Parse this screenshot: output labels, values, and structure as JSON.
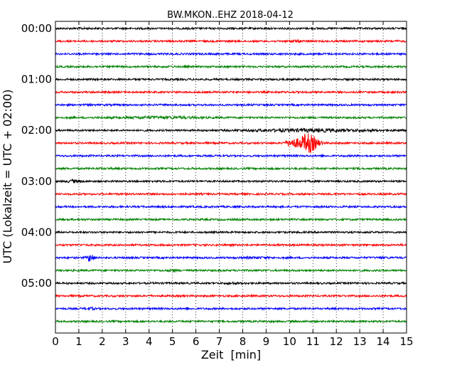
{
  "chart_data": {
    "type": "line",
    "title": "BW.MKON..EHZ 2018-04-12",
    "xlabel": "Zeit  [min]",
    "ylabel": "UTC (Lokalzeit = UTC + 02:00)",
    "xlim": [
      0,
      15
    ],
    "x_ticks": [
      0,
      1,
      2,
      3,
      4,
      5,
      6,
      7,
      8,
      9,
      10,
      11,
      12,
      13,
      14,
      15
    ],
    "y_tick_labels": [
      "00:00",
      "01:00",
      "02:00",
      "03:00",
      "04:00",
      "05:00"
    ],
    "trace_minutes_start": 0,
    "trace_interval_minutes": 15,
    "grid": "vertical dotted",
    "colors": [
      "#000000",
      "#ff0000",
      "#0000ff",
      "#008000"
    ],
    "series": [
      {
        "start": "00:00",
        "color": "#000000",
        "events": [
          {
            "t": 1.2,
            "amp": 1.3,
            "dur": 0.5
          }
        ]
      },
      {
        "start": "00:15",
        "color": "#ff0000",
        "events": [
          {
            "t": 10.3,
            "amp": 2.0,
            "dur": 0.5
          },
          {
            "t": 14.5,
            "amp": 1.2,
            "dur": 0.4
          }
        ]
      },
      {
        "start": "00:30",
        "color": "#0000ff",
        "events": []
      },
      {
        "start": "00:45",
        "color": "#008000",
        "events": [
          {
            "t": 5.0,
            "amp": 1.2,
            "dur": 0.6
          }
        ]
      },
      {
        "start": "01:00",
        "color": "#000000",
        "events": []
      },
      {
        "start": "01:15",
        "color": "#ff0000",
        "events": []
      },
      {
        "start": "01:30",
        "color": "#0000ff",
        "events": [
          {
            "t": 1.5,
            "amp": 1.2,
            "dur": 0.3
          }
        ]
      },
      {
        "start": "01:45",
        "color": "#008000",
        "events": [
          {
            "t": 4.5,
            "amp": 2.0,
            "dur": 3.5
          }
        ]
      },
      {
        "start": "02:00",
        "color": "#000000",
        "events": [
          {
            "t": 11.0,
            "amp": 2.5,
            "dur": 5.0
          }
        ]
      },
      {
        "start": "02:15",
        "color": "#ff0000",
        "events": [
          {
            "t": 10.1,
            "amp": 6.0,
            "dur": 0.5
          },
          {
            "t": 10.8,
            "amp": 14.0,
            "dur": 0.8
          }
        ]
      },
      {
        "start": "02:30",
        "color": "#0000ff",
        "events": []
      },
      {
        "start": "02:45",
        "color": "#008000",
        "events": [
          {
            "t": 2.0,
            "amp": 1.2,
            "dur": 0.8
          }
        ]
      },
      {
        "start": "03:00",
        "color": "#000000",
        "events": [
          {
            "t": 0.8,
            "amp": 2.5,
            "dur": 0.6
          }
        ]
      },
      {
        "start": "03:15",
        "color": "#ff0000",
        "events": []
      },
      {
        "start": "03:30",
        "color": "#0000ff",
        "events": []
      },
      {
        "start": "03:45",
        "color": "#008000",
        "events": []
      },
      {
        "start": "04:00",
        "color": "#000000",
        "events": []
      },
      {
        "start": "04:15",
        "color": "#ff0000",
        "events": []
      },
      {
        "start": "04:30",
        "color": "#0000ff",
        "events": [
          {
            "t": 1.5,
            "amp": 6.0,
            "dur": 0.3
          },
          {
            "t": 8.5,
            "amp": 1.5,
            "dur": 1.5
          },
          {
            "t": 14.0,
            "amp": 1.5,
            "dur": 0.5
          }
        ]
      },
      {
        "start": "04:45",
        "color": "#008000",
        "events": [
          {
            "t": 5.0,
            "amp": 2.5,
            "dur": 0.3
          }
        ]
      },
      {
        "start": "05:00",
        "color": "#000000",
        "events": [
          {
            "t": 7.5,
            "amp": 2.0,
            "dur": 0.4
          },
          {
            "t": 8.1,
            "amp": 1.5,
            "dur": 0.3
          }
        ]
      },
      {
        "start": "05:15",
        "color": "#ff0000",
        "events": []
      },
      {
        "start": "05:30",
        "color": "#0000ff",
        "events": [
          {
            "t": 1.5,
            "amp": 2.0,
            "dur": 0.4
          }
        ]
      },
      {
        "start": "05:45",
        "color": "#008000",
        "events": []
      }
    ]
  }
}
